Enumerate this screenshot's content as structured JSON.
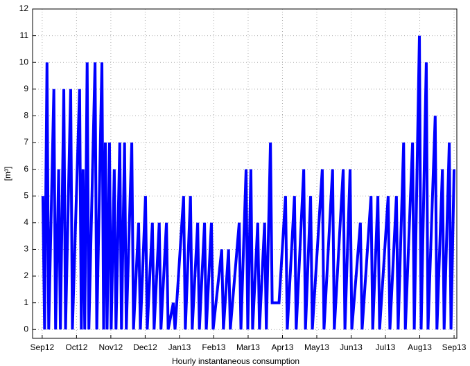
{
  "chart_data": {
    "type": "line",
    "xlabel": "Hourly instantaneous consumption",
    "ylabel": "[m³]",
    "xlim": [
      -0.28,
      12.08
    ],
    "ylim": [
      -0.33,
      12
    ],
    "xticks": [
      {
        "value": 0,
        "label": "Sep12"
      },
      {
        "value": 1,
        "label": "Oct12"
      },
      {
        "value": 2,
        "label": "Nov12"
      },
      {
        "value": 3,
        "label": "Dec12"
      },
      {
        "value": 4,
        "label": "Jan13"
      },
      {
        "value": 5,
        "label": "Feb13"
      },
      {
        "value": 6,
        "label": "Mar13"
      },
      {
        "value": 7,
        "label": "Apr13"
      },
      {
        "value": 8,
        "label": "May13"
      },
      {
        "value": 9,
        "label": "Jun13"
      },
      {
        "value": 10,
        "label": "Jul13"
      },
      {
        "value": 11,
        "label": "Aug13"
      },
      {
        "value": 12,
        "label": "Sep13"
      }
    ],
    "yticks": [
      0,
      1,
      2,
      3,
      4,
      5,
      6,
      7,
      8,
      9,
      10,
      11,
      12
    ],
    "grid": true,
    "x": [
      0.02,
      0.07,
      0.14,
      0.19,
      0.34,
      0.39,
      0.48,
      0.53,
      0.63,
      0.68,
      0.83,
      0.88,
      1.09,
      1.14,
      1.19,
      1.24,
      1.31,
      1.36,
      1.54,
      1.59,
      1.74,
      1.79,
      1.84,
      1.89,
      1.96,
      2.01,
      2.1,
      2.15,
      2.26,
      2.31,
      2.4,
      2.45,
      2.61,
      2.66,
      2.81,
      2.86,
      3.01,
      3.06,
      3.21,
      3.26,
      3.41,
      3.46,
      3.62,
      3.67,
      3.82,
      3.87,
      4.12,
      4.17,
      4.32,
      4.37,
      4.53,
      4.58,
      4.73,
      4.78,
      4.93,
      4.98,
      5.23,
      5.28,
      5.43,
      5.48,
      5.74,
      5.79,
      5.94,
      5.99,
      6.08,
      6.13,
      6.28,
      6.33,
      6.48,
      6.53,
      6.65,
      6.7,
      6.85,
      6.9,
      7.09,
      7.14,
      7.35,
      7.4,
      7.62,
      7.67,
      7.82,
      7.87,
      8.16,
      8.21,
      8.46,
      8.51,
      8.77,
      8.82,
      8.97,
      9.02,
      9.27,
      9.32,
      9.58,
      9.63,
      9.78,
      9.83,
      10.08,
      10.13,
      10.32,
      10.37,
      10.53,
      10.58,
      10.79,
      10.84,
      10.99,
      11.04,
      11.19,
      11.24,
      11.45,
      11.5,
      11.66,
      11.71,
      11.86,
      11.91,
      12.0
    ],
    "series": [
      {
        "color": "#0000ff",
        "values": [
          5,
          0,
          10,
          0,
          9,
          0,
          6,
          0,
          9,
          0,
          9,
          0,
          9,
          0,
          6,
          0,
          10,
          0,
          10,
          0,
          10,
          0,
          7,
          0,
          7,
          0,
          6,
          0,
          7,
          0,
          7,
          0,
          7,
          0,
          4,
          0,
          5,
          0,
          4,
          0,
          4,
          0,
          4,
          0,
          1,
          0,
          5,
          0,
          5,
          0,
          4,
          0,
          4,
          0,
          4,
          0,
          3,
          0,
          3,
          0,
          4,
          0,
          6,
          0,
          6,
          0,
          4,
          0,
          4,
          0,
          7,
          1,
          1,
          1,
          5,
          0,
          5,
          0,
          6,
          0,
          5,
          0,
          6,
          0,
          6,
          0,
          6,
          0,
          6,
          0,
          4,
          0,
          5,
          0,
          5,
          0,
          5,
          0,
          5,
          0,
          7,
          0,
          7,
          0,
          11,
          0,
          10,
          0,
          8,
          0,
          6,
          0,
          7,
          0,
          6
        ]
      }
    ]
  }
}
